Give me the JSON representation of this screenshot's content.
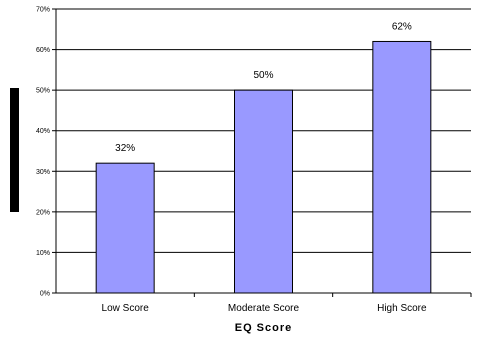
{
  "chart_data": {
    "type": "bar",
    "categories": [
      "Low Score",
      "Moderate Score",
      "High Score"
    ],
    "values": [
      32,
      50,
      62
    ],
    "data_labels": [
      "32%",
      "50%",
      "62%"
    ],
    "title": "",
    "xlabel": "EQ Score",
    "ylabel": "",
    "ylim": [
      0,
      70
    ],
    "y_ticks": [
      0,
      10,
      20,
      30,
      40,
      50,
      60,
      70
    ],
    "y_tick_labels": [
      "0%",
      "10%",
      "20%",
      "30%",
      "40%",
      "50%",
      "60%",
      "70%"
    ],
    "grid": true,
    "legend": "none",
    "colors": {
      "bar_fill": "#9999ff",
      "bar_stroke": "#000000",
      "grid": "#000000",
      "axis": "#000000",
      "ylabel_block": "#000000"
    }
  }
}
